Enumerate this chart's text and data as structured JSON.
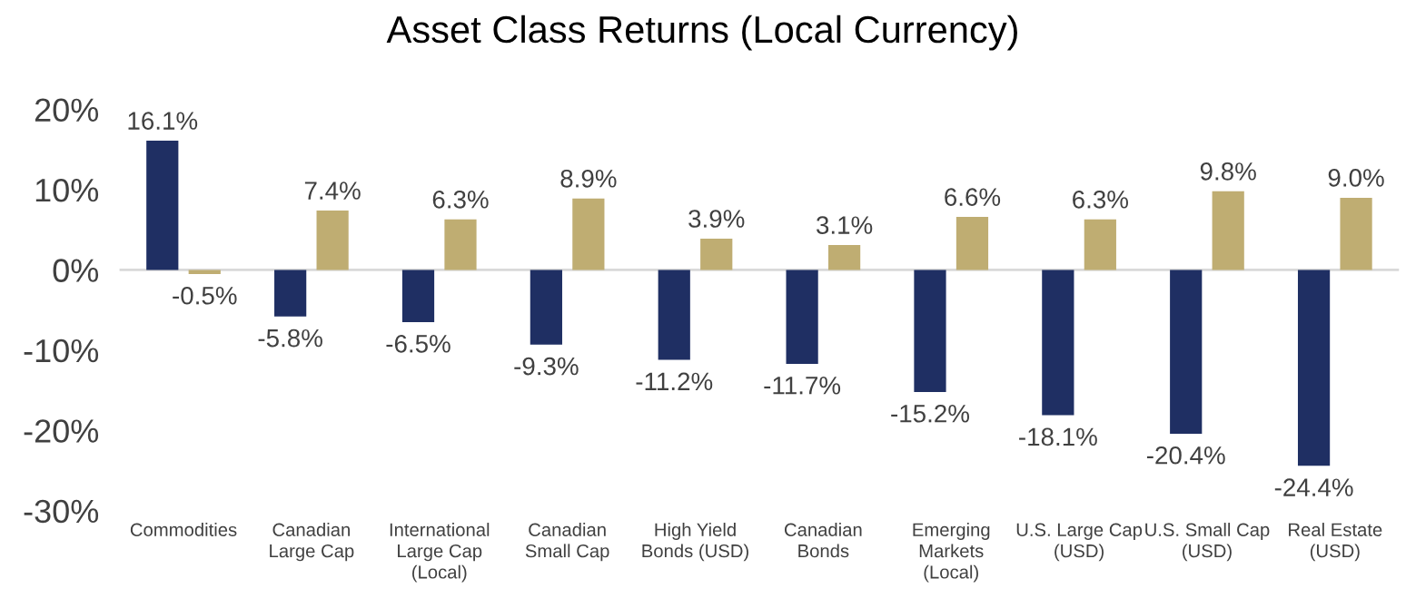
{
  "chart_data": {
    "type": "bar",
    "title": "Asset Class Returns (Local Currency)",
    "categories": [
      "Commodities",
      "Canadian\nLarge Cap",
      "International\nLarge Cap\n(Local)",
      "Canadian\nSmall Cap",
      "High Yield\nBonds (USD)",
      "Canadian\nBonds",
      "Emerging\nMarkets\n(Local)",
      "U.S. Large Cap\n(USD)",
      "U.S. Small Cap\n(USD)",
      "Real Estate\n(USD)"
    ],
    "series": [
      {
        "color": "#1f2f63",
        "values": [
          16.1,
          -5.8,
          -6.5,
          -9.3,
          -11.2,
          -11.7,
          -15.2,
          -18.1,
          -20.4,
          -24.4
        ],
        "value_labels": [
          "16.1%",
          "-5.8%",
          "-6.5%",
          "-9.3%",
          "-11.2%",
          "-11.7%",
          "-15.2%",
          "-18.1%",
          "-20.4%",
          "-24.4%"
        ]
      },
      {
        "color": "#bfad72",
        "values": [
          -0.5,
          7.4,
          6.3,
          8.9,
          3.9,
          3.1,
          6.6,
          6.3,
          9.8,
          9.0
        ],
        "value_labels": [
          "-0.5%",
          "7.4%",
          "6.3%",
          "8.9%",
          "3.9%",
          "3.1%",
          "6.6%",
          "6.3%",
          "9.8%",
          "9.0%"
        ]
      }
    ],
    "ylim": [
      -30,
      20
    ],
    "yticks": [
      {
        "value": -30,
        "label": "-30%"
      },
      {
        "value": -20,
        "label": "-20%"
      },
      {
        "value": -10,
        "label": "-10%"
      },
      {
        "value": 0,
        "label": "0%"
      },
      {
        "value": 10,
        "label": "10%"
      },
      {
        "value": 20,
        "label": "20%"
      }
    ],
    "ref_lines": [
      {
        "axis": "y",
        "value": 0,
        "color": "#d9d9d9"
      }
    ],
    "grid": false,
    "legend": false
  }
}
